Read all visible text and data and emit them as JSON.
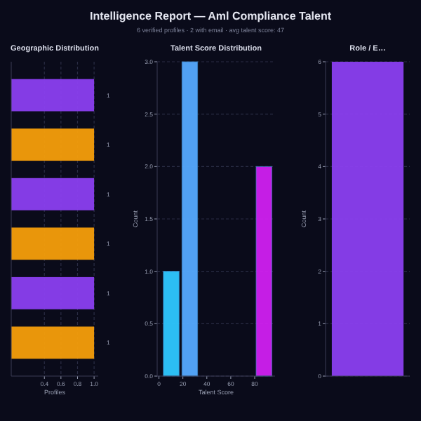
{
  "chart_data": [
    {
      "type": "other",
      "title": "Intelligence Report — Aml Compliance Talent",
      "subtitle": "6 verified profiles · 2 with email · avg talent score: 47"
    },
    {
      "type": "bar",
      "title": "Geographic Distribution",
      "orientation": "horizontal",
      "categories": [
        null,
        null,
        null,
        null,
        null,
        null
      ],
      "values": [
        1,
        1,
        1,
        1,
        1,
        1
      ],
      "colors": [
        "#8b3ff0",
        "#f59e0b",
        "#8b3ff0",
        "#f59e0b",
        "#8b3ff0",
        "#f59e0b"
      ],
      "xlim": [
        0,
        1.05
      ],
      "xticks": [
        0.4,
        0.6,
        0.8,
        {
          "value": 1,
          "label": "1.0"
        }
      ],
      "xlabel": "Profiles",
      "grid": "x",
      "data_labels": true
    },
    {
      "type": "histogram",
      "title": "Talent Score Distribution",
      "bins": [
        2.5,
        18,
        33.5,
        49,
        64.5,
        80,
        95.5
      ],
      "values": [
        1,
        3,
        0,
        0,
        0,
        2
      ],
      "colors": [
        "#2ec8ff",
        "#55aaff",
        "#a855f7",
        "#a855f7",
        "#a855f7",
        "#d020f0"
      ],
      "xlim": [
        -1.5,
        97
      ],
      "xticks": [
        0,
        20,
        40,
        60,
        80
      ],
      "ylim": [
        0,
        3
      ],
      "yticks": [
        {
          "value": 0,
          "label": "0.0"
        },
        0.5,
        {
          "value": 1,
          "label": "1.0"
        },
        1.5,
        {
          "value": 2,
          "label": "2.0"
        },
        2.5,
        {
          "value": 3,
          "label": "3.0"
        }
      ],
      "xlabel": "Talent Score",
      "ylabel": "Count",
      "grid": "y"
    },
    {
      "type": "bar",
      "title": "Role / E…",
      "categories": [
        null
      ],
      "values": [
        6
      ],
      "colors": [
        "#8b3ff0"
      ],
      "ylim": [
        0,
        6
      ],
      "yticks": [
        0,
        1,
        2,
        3,
        4,
        5,
        6
      ],
      "ylabel": "Count",
      "grid": "y"
    }
  ]
}
